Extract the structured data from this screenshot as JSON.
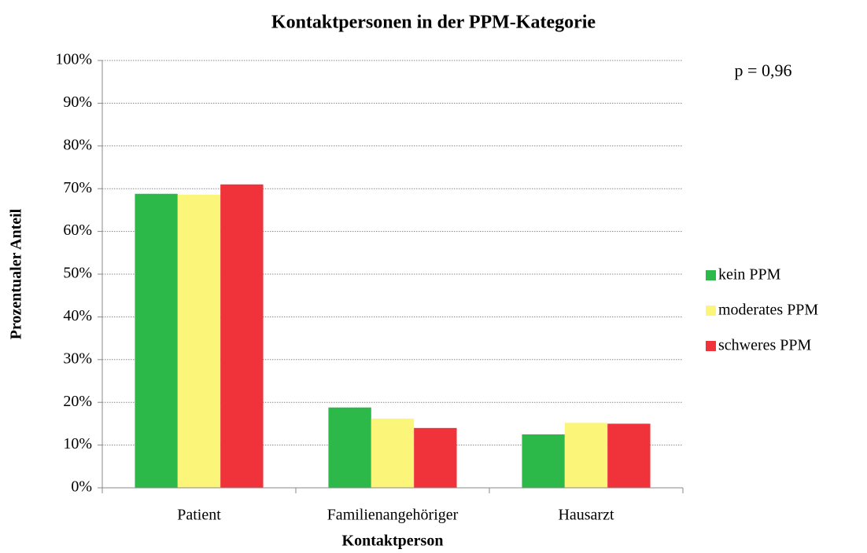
{
  "chart_data": {
    "type": "bar",
    "title": "Kontaktpersonen in der PPM-Kategorie",
    "x_label": "Kontaktperson",
    "y_label": "Prozentualer Anteil",
    "annotation": "p = 0,96",
    "categories": [
      "Patient",
      "Familienangehöriger",
      "Hausarzt"
    ],
    "series": [
      {
        "name": "kein PPM",
        "color": "#2db84a",
        "values": [
          68.8,
          18.8,
          12.5
        ]
      },
      {
        "name": "moderates PPM",
        "color": "#fbf67a",
        "values": [
          68.6,
          16.2,
          15.2
        ]
      },
      {
        "name": "schweres PPM",
        "color": "#f0323a",
        "values": [
          71.0,
          14.0,
          15.0
        ]
      }
    ],
    "ylim": [
      0,
      100
    ],
    "yticks": [
      {
        "value": 0,
        "label": "0%"
      },
      {
        "value": 10,
        "label": "10%"
      },
      {
        "value": 20,
        "label": "20%"
      },
      {
        "value": 30,
        "label": "30%"
      },
      {
        "value": 40,
        "label": "40%"
      },
      {
        "value": 50,
        "label": "50%"
      },
      {
        "value": 60,
        "label": "60%"
      },
      {
        "value": 70,
        "label": "70%"
      },
      {
        "value": 80,
        "label": "80%"
      },
      {
        "value": 90,
        "label": "90%"
      },
      {
        "value": 100,
        "label": "100%"
      }
    ],
    "grid": true,
    "legend": "right"
  }
}
